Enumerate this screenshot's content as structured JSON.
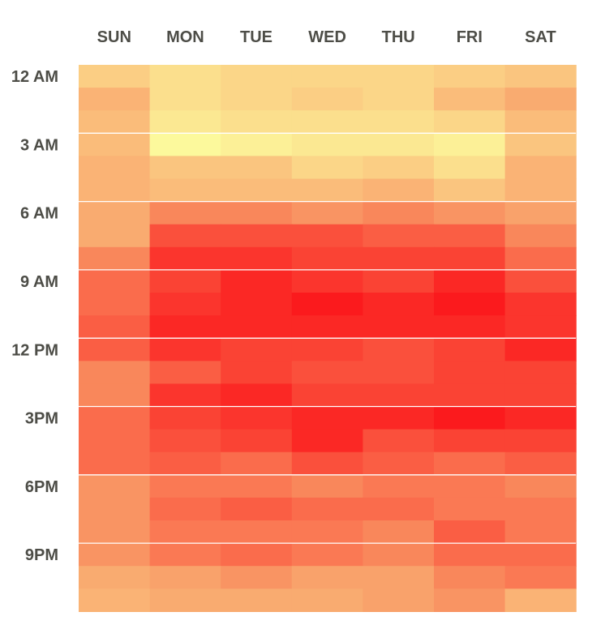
{
  "chart_data": {
    "type": "heatmap",
    "columns": [
      "SUN",
      "MON",
      "TUE",
      "WED",
      "THU",
      "FRI",
      "SAT"
    ],
    "row_labels": [
      "12 AM",
      "",
      "",
      "3 AM",
      "",
      "",
      "6 AM",
      "",
      "",
      "9 AM",
      "",
      "",
      "12 PM",
      "",
      "",
      "3PM",
      "",
      "",
      "6PM",
      "",
      "",
      "9PM",
      "",
      ""
    ],
    "value_scale": {
      "min": 0,
      "max": 10,
      "low_color": "#fcf99c",
      "mid_color": "#f9a26b",
      "high_color": "#fb1a1d"
    },
    "grid_lines_every_rows": 3,
    "values": [
      [
        2.5,
        1.5,
        2.0,
        2.0,
        2.0,
        2.5,
        3.0
      ],
      [
        4.0,
        1.5,
        2.0,
        2.5,
        2.0,
        3.5,
        4.5
      ],
      [
        3.5,
        1.0,
        1.5,
        1.5,
        1.5,
        2.0,
        3.5
      ],
      [
        3.5,
        0.0,
        0.5,
        1.0,
        1.0,
        0.5,
        3.0
      ],
      [
        4.0,
        3.0,
        3.0,
        2.0,
        2.5,
        1.5,
        4.0
      ],
      [
        4.0,
        3.5,
        3.5,
        3.5,
        4.0,
        3.0,
        4.0
      ],
      [
        4.5,
        6.0,
        6.0,
        5.5,
        6.0,
        5.5,
        5.0
      ],
      [
        4.5,
        8.0,
        8.0,
        8.0,
        7.5,
        7.5,
        6.0
      ],
      [
        6.0,
        9.0,
        9.0,
        8.5,
        8.5,
        8.5,
        7.0
      ],
      [
        7.0,
        8.5,
        9.5,
        9.0,
        8.5,
        9.5,
        8.0
      ],
      [
        7.0,
        9.0,
        9.5,
        10.0,
        9.5,
        10.0,
        9.0
      ],
      [
        7.5,
        9.5,
        9.5,
        9.5,
        9.5,
        9.5,
        9.0
      ],
      [
        7.5,
        9.0,
        8.5,
        8.5,
        8.0,
        8.5,
        9.5
      ],
      [
        6.0,
        7.5,
        8.5,
        8.0,
        8.0,
        8.5,
        8.5
      ],
      [
        6.0,
        9.0,
        9.5,
        8.5,
        8.5,
        8.5,
        8.5
      ],
      [
        7.0,
        8.5,
        9.0,
        9.5,
        9.5,
        10.0,
        9.5
      ],
      [
        7.0,
        8.0,
        8.5,
        9.5,
        8.0,
        8.5,
        8.5
      ],
      [
        7.0,
        7.5,
        7.0,
        8.0,
        7.5,
        7.0,
        7.5
      ],
      [
        5.5,
        6.5,
        6.5,
        6.0,
        6.5,
        6.5,
        6.0
      ],
      [
        5.5,
        7.0,
        7.5,
        7.0,
        7.0,
        6.5,
        6.5
      ],
      [
        5.5,
        6.5,
        6.5,
        6.5,
        6.0,
        7.5,
        6.5
      ],
      [
        5.5,
        6.5,
        7.0,
        6.5,
        6.0,
        7.0,
        7.0
      ],
      [
        4.5,
        5.0,
        5.5,
        5.0,
        5.0,
        6.0,
        6.5
      ],
      [
        4.0,
        4.5,
        4.5,
        4.5,
        5.0,
        5.5,
        4.0
      ]
    ]
  }
}
